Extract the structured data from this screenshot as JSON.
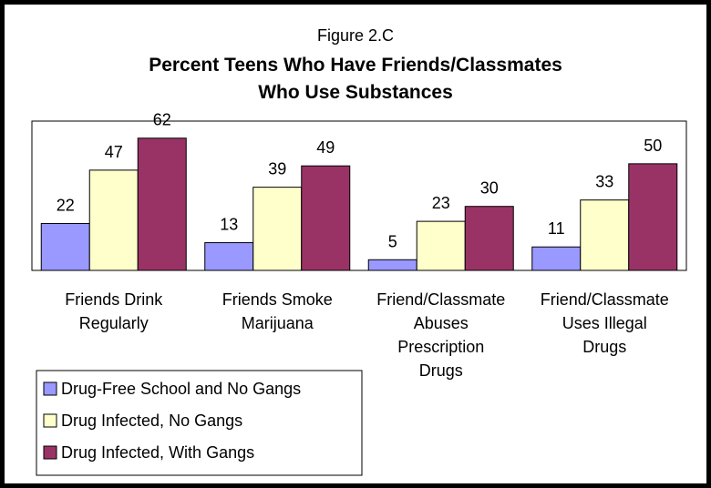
{
  "chart_data": {
    "type": "bar",
    "figure_label": "Figure 2.C",
    "title_lines": [
      "Percent Teens Who Have Friends/Classmates",
      "Who Use Substances"
    ],
    "categories": [
      [
        "Friends Drink",
        "Regularly"
      ],
      [
        "Friends Smoke",
        "Marijuana"
      ],
      [
        "Friend/Classmate",
        "Abuses",
        "Prescription",
        "Drugs"
      ],
      [
        "Friend/Classmate",
        "Uses Illegal",
        "Drugs"
      ]
    ],
    "series": [
      {
        "name": "Drug-Free School and No Gangs",
        "color": "#9999ff",
        "values": [
          22,
          13,
          5,
          11
        ]
      },
      {
        "name": "Drug Infected, No Gangs",
        "color": "#ffffcc",
        "values": [
          47,
          39,
          23,
          33
        ]
      },
      {
        "name": "Drug Infected, With Gangs",
        "color": "#993366",
        "values": [
          62,
          49,
          30,
          50
        ]
      }
    ],
    "ylim": [
      0,
      70
    ],
    "grid": false,
    "legend_position": "bottom-left"
  }
}
